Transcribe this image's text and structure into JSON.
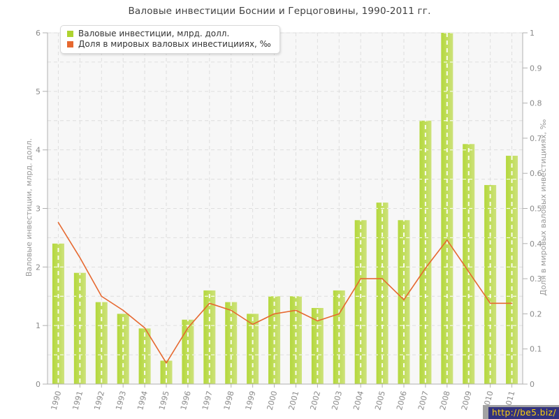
{
  "chart_data": {
    "type": "combo",
    "title": "Валовые инвестиции Боснии и Герцоговины, 1990-2011 гг.",
    "categories": [
      "1990",
      "1991",
      "1992",
      "1993",
      "1994",
      "1995",
      "1996",
      "1997",
      "1998",
      "1999",
      "2000",
      "2001",
      "2002",
      "2003",
      "2004",
      "2005",
      "2006",
      "2007",
      "2008",
      "2009",
      "2010",
      "2011"
    ],
    "series": [
      {
        "name": "Валовые инвестиции, млрд. долл.",
        "type": "bar",
        "axis": "left",
        "color": "#aed32f",
        "bar_gradient": [
          "#b4d83c",
          "#cde27b"
        ],
        "values": [
          2.4,
          1.9,
          1.4,
          1.2,
          0.95,
          0.4,
          1.1,
          1.6,
          1.4,
          1.2,
          1.5,
          1.5,
          1.3,
          1.6,
          2.8,
          3.1,
          2.8,
          4.5,
          6.0,
          4.1,
          3.4,
          3.9
        ]
      },
      {
        "name": "Доля в мировых валовых инвестицииях, ‰",
        "type": "line",
        "axis": "right",
        "color": "#e6682f",
        "values": [
          0.46,
          0.36,
          0.25,
          0.21,
          0.16,
          0.06,
          0.16,
          0.23,
          0.21,
          0.17,
          0.2,
          0.21,
          0.18,
          0.2,
          0.3,
          0.3,
          0.24,
          0.33,
          0.41,
          0.32,
          0.23,
          0.23
        ]
      }
    ],
    "left_axis": {
      "label": "Валовые инвестиции, млрд. долл.",
      "min": 0,
      "max": 6,
      "tick_step": 1,
      "grid_step": 0.5
    },
    "right_axis": {
      "label": "Доля в мировых валовых инвестицииях, ‰",
      "min": 0,
      "max": 1,
      "tick_step": 0.1
    },
    "grid": "dashed horizontal every 0.5 left-units, dashed vertical at each year",
    "legend_position": "top-left",
    "plot_bg": "#f7f7f7",
    "grid_color": "#dedede",
    "axis_color": "#b0b0b0",
    "tick_label_color": "#8a8a8a"
  },
  "watermark": {
    "text": "http://be5.biz/",
    "bg": "#32327e",
    "fg": "#ffd10a"
  }
}
